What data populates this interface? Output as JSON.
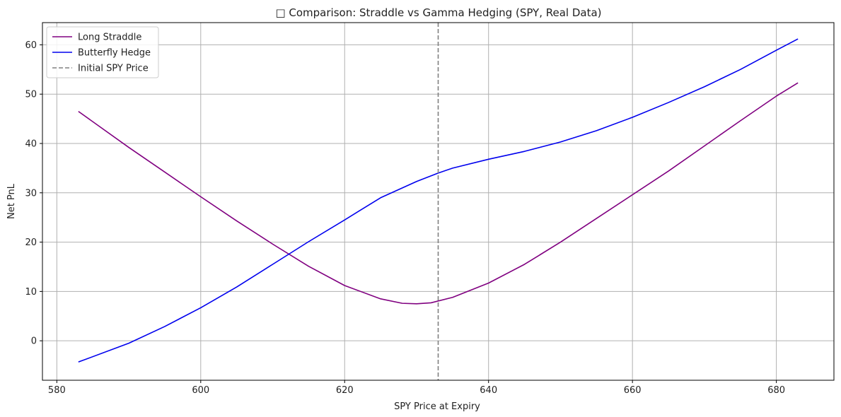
{
  "chart_data": {
    "type": "line",
    "title": "□ Comparison: Straddle vs Gamma Hedging (SPY, Real Data)",
    "xlabel": "SPY Price at Expiry",
    "ylabel": "Net PnL",
    "xlim": [
      578,
      688
    ],
    "ylim": [
      -8,
      64.5
    ],
    "xticks": [
      580,
      600,
      620,
      640,
      660,
      680
    ],
    "yticks": [
      0,
      10,
      20,
      30,
      40,
      50,
      60
    ],
    "grid": true,
    "legend_position": "top-left",
    "series": [
      {
        "name": "Long Straddle",
        "color": "#800080",
        "x": [
          583,
          590,
          595,
          600,
          605,
          610,
          615,
          620,
          625,
          628,
          630,
          632,
          635,
          640,
          645,
          650,
          655,
          660,
          665,
          670,
          675,
          680,
          683
        ],
        "y": [
          46.5,
          39.2,
          34.2,
          29.2,
          24.3,
          19.6,
          15.1,
          11.2,
          8.5,
          7.6,
          7.5,
          7.7,
          8.8,
          11.7,
          15.5,
          20.0,
          24.8,
          29.6,
          34.4,
          39.5,
          44.6,
          49.6,
          52.3
        ]
      },
      {
        "name": "Butterfly Hedge",
        "color": "#0000ee",
        "x": [
          583,
          590,
          595,
          600,
          605,
          610,
          615,
          620,
          625,
          630,
          633,
          635,
          640,
          645,
          650,
          655,
          660,
          665,
          670,
          675,
          680,
          683
        ],
        "y": [
          -4.3,
          -0.5,
          2.9,
          6.7,
          10.9,
          15.5,
          20.1,
          24.5,
          29.0,
          32.3,
          34.0,
          35.0,
          36.8,
          38.4,
          40.3,
          42.6,
          45.3,
          48.3,
          51.5,
          55.0,
          58.9,
          61.2
        ]
      },
      {
        "name": "Initial SPY Price",
        "color": "#808080",
        "style": "dashed",
        "vline": 633
      }
    ]
  }
}
